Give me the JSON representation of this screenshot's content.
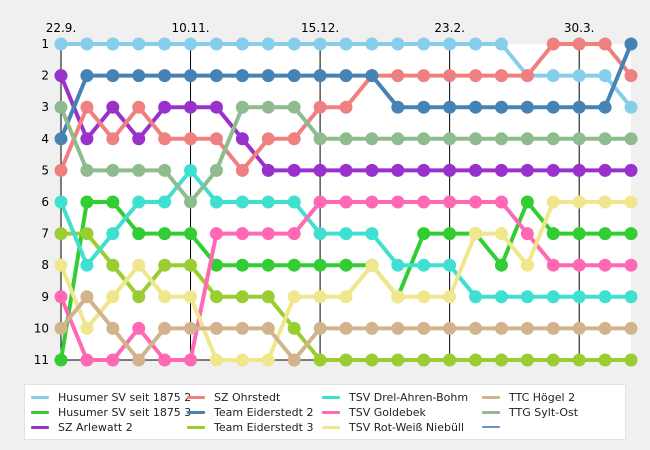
{
  "chart_data": {
    "type": "line",
    "title": "",
    "xlabel": "",
    "ylabel": "",
    "x_ticks": [
      {
        "index": 0,
        "label": "22.9."
      },
      {
        "index": 5,
        "label": "10.11."
      },
      {
        "index": 10,
        "label": "15.12."
      },
      {
        "index": 15,
        "label": "23.2."
      },
      {
        "index": 20,
        "label": "30.3."
      }
    ],
    "y_ticks": [
      1,
      2,
      3,
      4,
      5,
      6,
      7,
      8,
      9,
      10,
      11
    ],
    "ylim": [
      11,
      1
    ],
    "x_count": 23,
    "y_inverted": true,
    "grid": "vertical-at-ticks",
    "legend_position": "bottom",
    "series": [
      {
        "name": "Husumer SV seit 1875 2",
        "color": "#87ceeb",
        "values": [
          1,
          1,
          1,
          1,
          1,
          1,
          1,
          1,
          1,
          1,
          1,
          1,
          1,
          1,
          1,
          1,
          1,
          1,
          2,
          2,
          2,
          2,
          3
        ]
      },
      {
        "name": "Husumer SV seit 1875 3",
        "color": "#32cd32",
        "values": [
          11,
          6,
          6,
          7,
          7,
          7,
          8,
          8,
          8,
          8,
          8,
          8,
          8,
          9,
          7,
          7,
          7,
          8,
          6,
          7,
          7,
          7,
          7
        ]
      },
      {
        "name": "SZ Arlewatt 2",
        "color": "#9932cc",
        "values": [
          2,
          4,
          3,
          4,
          3,
          3,
          3,
          4,
          5,
          5,
          5,
          5,
          5,
          5,
          5,
          5,
          5,
          5,
          5,
          5,
          5,
          5,
          5
        ]
      },
      {
        "name": "SZ Ohrstedt",
        "color": "#f08080",
        "values": [
          5,
          3,
          4,
          3,
          4,
          4,
          4,
          5,
          4,
          4,
          3,
          3,
          2,
          2,
          2,
          2,
          2,
          2,
          2,
          1,
          1,
          1,
          2
        ]
      },
      {
        "name": "Team Eiderstedt 2",
        "color": "#4682b4",
        "values": [
          4,
          2,
          2,
          2,
          2,
          2,
          2,
          2,
          2,
          2,
          2,
          2,
          2,
          3,
          3,
          3,
          3,
          3,
          3,
          3,
          3,
          3,
          1
        ]
      },
      {
        "name": "Team Eiderstedt 3",
        "color": "#9acd32",
        "values": [
          7,
          7,
          8,
          9,
          8,
          8,
          9,
          9,
          9,
          10,
          11,
          11,
          11,
          11,
          11,
          11,
          11,
          11,
          11,
          11,
          11,
          11,
          11
        ]
      },
      {
        "name": "TSV Drel-Ahren-Bohm",
        "color": "#40e0d0",
        "values": [
          6,
          8,
          7,
          6,
          6,
          5,
          6,
          6,
          6,
          6,
          7,
          7,
          7,
          8,
          8,
          8,
          9,
          9,
          9,
          9,
          9,
          9,
          9
        ]
      },
      {
        "name": "TSV Goldebek",
        "color": "#ff69b4",
        "values": [
          9,
          11,
          11,
          10,
          11,
          11,
          7,
          7,
          7,
          7,
          6,
          6,
          6,
          6,
          6,
          6,
          6,
          6,
          7,
          8,
          8,
          8,
          8
        ]
      },
      {
        "name": "TSV Rot-Weiß Niebüll",
        "color": "#f0e68c",
        "values": [
          8,
          10,
          9,
          8,
          9,
          9,
          11,
          11,
          11,
          9,
          9,
          9,
          8,
          9,
          9,
          9,
          7,
          7,
          8,
          6,
          6,
          6,
          6
        ]
      },
      {
        "name": "TTC Högel 2",
        "color": "#d2b48c",
        "values": [
          10,
          9,
          10,
          11,
          10,
          10,
          10,
          10,
          10,
          11,
          10,
          10,
          10,
          10,
          10,
          10,
          10,
          10,
          10,
          10,
          10,
          10,
          10
        ]
      },
      {
        "name": "TTG Sylt-Ost",
        "color": "#8fbc8f",
        "values": [
          3,
          5,
          5,
          5,
          5,
          6,
          5,
          3,
          3,
          3,
          4,
          4,
          4,
          4,
          4,
          4,
          4,
          4,
          4,
          4,
          4,
          4,
          4
        ]
      },
      {
        "name": "",
        "color": "#6a8fd0",
        "values": []
      }
    ]
  }
}
